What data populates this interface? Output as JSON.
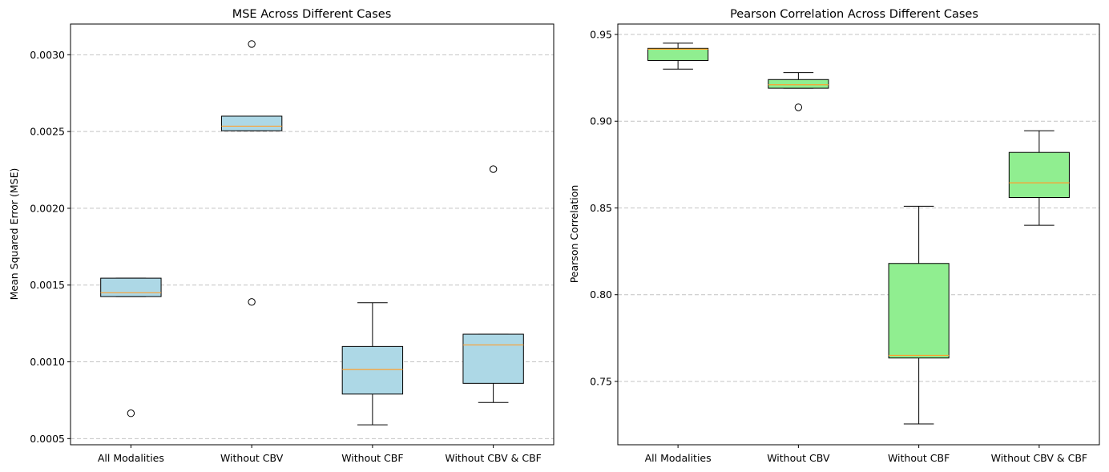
{
  "chart_data": [
    {
      "type": "boxplot",
      "title": "MSE Across Different Cases",
      "xlabel": "",
      "ylabel": "Mean Squared Error (MSE)",
      "ylim": [
        0.00046,
        0.0032
      ],
      "yticks": [
        0.0005,
        0.001,
        0.0015,
        0.002,
        0.0025,
        0.003
      ],
      "ytick_labels": [
        "0.0005",
        "0.0010",
        "0.0015",
        "0.0020",
        "0.0025",
        "0.0030"
      ],
      "grid": "y-dashed",
      "box_color": "#add8e6",
      "median_color": "#ff9f2e",
      "categories": [
        "All Modalities",
        "Without CBV",
        "Without CBF",
        "Without CBV & CBF"
      ],
      "boxes": [
        {
          "whisker_low": 0.001425,
          "q1": 0.001425,
          "median": 0.00145,
          "q3": 0.001545,
          "whisker_high": 0.001545,
          "outliers": [
            0.000665
          ]
        },
        {
          "whisker_low": 0.002505,
          "q1": 0.002505,
          "median": 0.002535,
          "q3": 0.0026,
          "whisker_high": 0.0026,
          "outliers": [
            0.00307,
            0.00139
          ]
        },
        {
          "whisker_low": 0.00059,
          "q1": 0.00079,
          "median": 0.00095,
          "q3": 0.0011,
          "whisker_high": 0.001385,
          "outliers": []
        },
        {
          "whisker_low": 0.000735,
          "q1": 0.00086,
          "median": 0.00111,
          "q3": 0.00118,
          "whisker_high": 0.00118,
          "outliers": [
            0.002255
          ]
        }
      ]
    },
    {
      "type": "boxplot",
      "title": "Pearson Correlation Across Different Cases",
      "xlabel": "",
      "ylabel": "Pearson Correlation",
      "ylim": [
        0.7135,
        0.956
      ],
      "yticks": [
        0.75,
        0.8,
        0.85,
        0.9,
        0.95
      ],
      "ytick_labels": [
        "0.75",
        "0.80",
        "0.85",
        "0.90",
        "0.95"
      ],
      "grid": "y-dashed",
      "box_color": "#90ee90",
      "median_color": "#ff9f2e",
      "categories": [
        "All Modalities",
        "Without CBV",
        "Without CBF",
        "Without CBV & CBF"
      ],
      "boxes": [
        {
          "whisker_low": 0.93,
          "q1": 0.935,
          "median": 0.9415,
          "q3": 0.942,
          "whisker_high": 0.945,
          "outliers": []
        },
        {
          "whisker_low": 0.919,
          "q1": 0.919,
          "median": 0.921,
          "q3": 0.924,
          "whisker_high": 0.928,
          "outliers": [
            0.908
          ]
        },
        {
          "whisker_low": 0.7255,
          "q1": 0.7635,
          "median": 0.765,
          "q3": 0.818,
          "whisker_high": 0.851,
          "outliers": []
        },
        {
          "whisker_low": 0.84,
          "q1": 0.856,
          "median": 0.8645,
          "q3": 0.882,
          "whisker_high": 0.8945,
          "outliers": []
        }
      ]
    }
  ]
}
